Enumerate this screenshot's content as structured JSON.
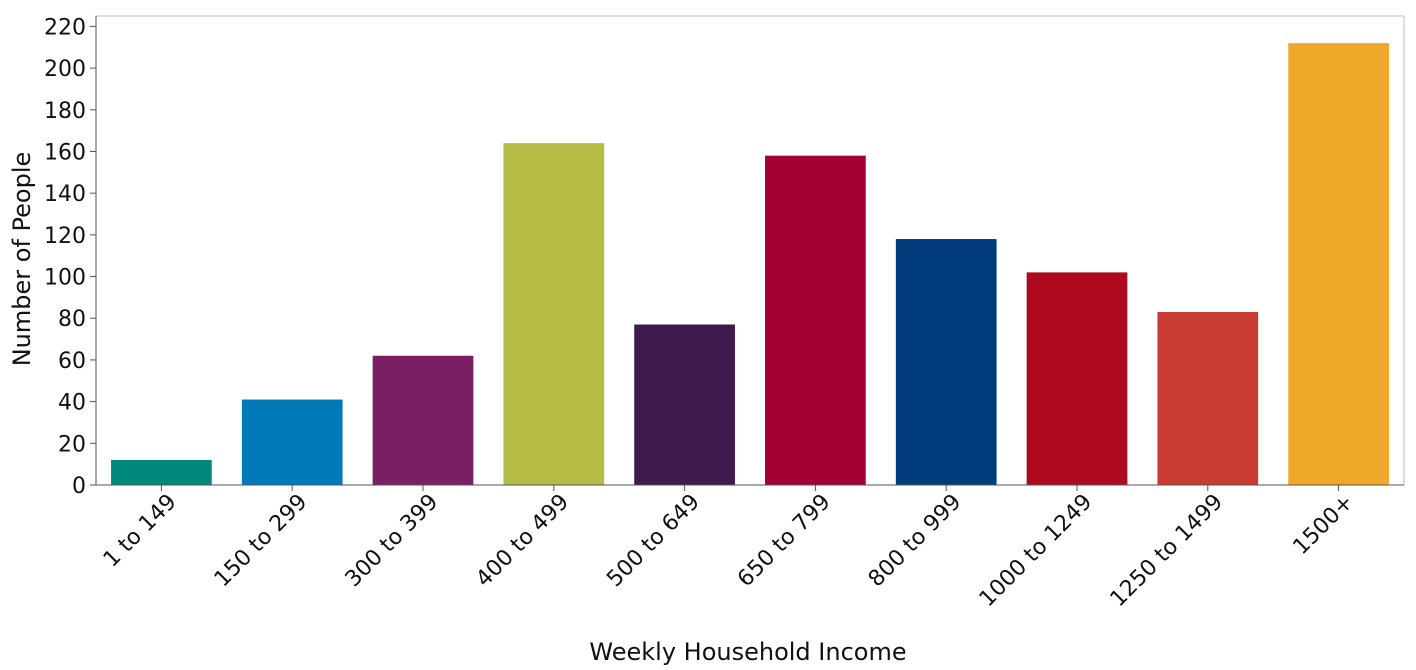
{
  "chart_data": {
    "type": "bar",
    "title": "",
    "xlabel": "Weekly Household Income",
    "ylabel": "Number of People",
    "ylim": [
      0,
      225
    ],
    "yticks": [
      "0",
      "20",
      "40",
      "60",
      "80",
      "100",
      "120",
      "140",
      "160",
      "180",
      "200",
      "220"
    ],
    "grid": false,
    "legend": "none",
    "categories": [
      "1 to 149",
      "150 to 299",
      "300 to 399",
      "400 to 499",
      "500 to 649",
      "650 to 799",
      "800 to 999",
      "1000 to 1249",
      "1250 to 1499",
      "1500+"
    ],
    "values": [
      12,
      41,
      62,
      164,
      77,
      158,
      118,
      102,
      83,
      212
    ],
    "colors": [
      "#00897b",
      "#0079b8",
      "#7a2062",
      "#b5bd45",
      "#3e1a4f",
      "#a50034",
      "#003b7c",
      "#ad0a1f",
      "#c83b33",
      "#f0a82a"
    ]
  }
}
